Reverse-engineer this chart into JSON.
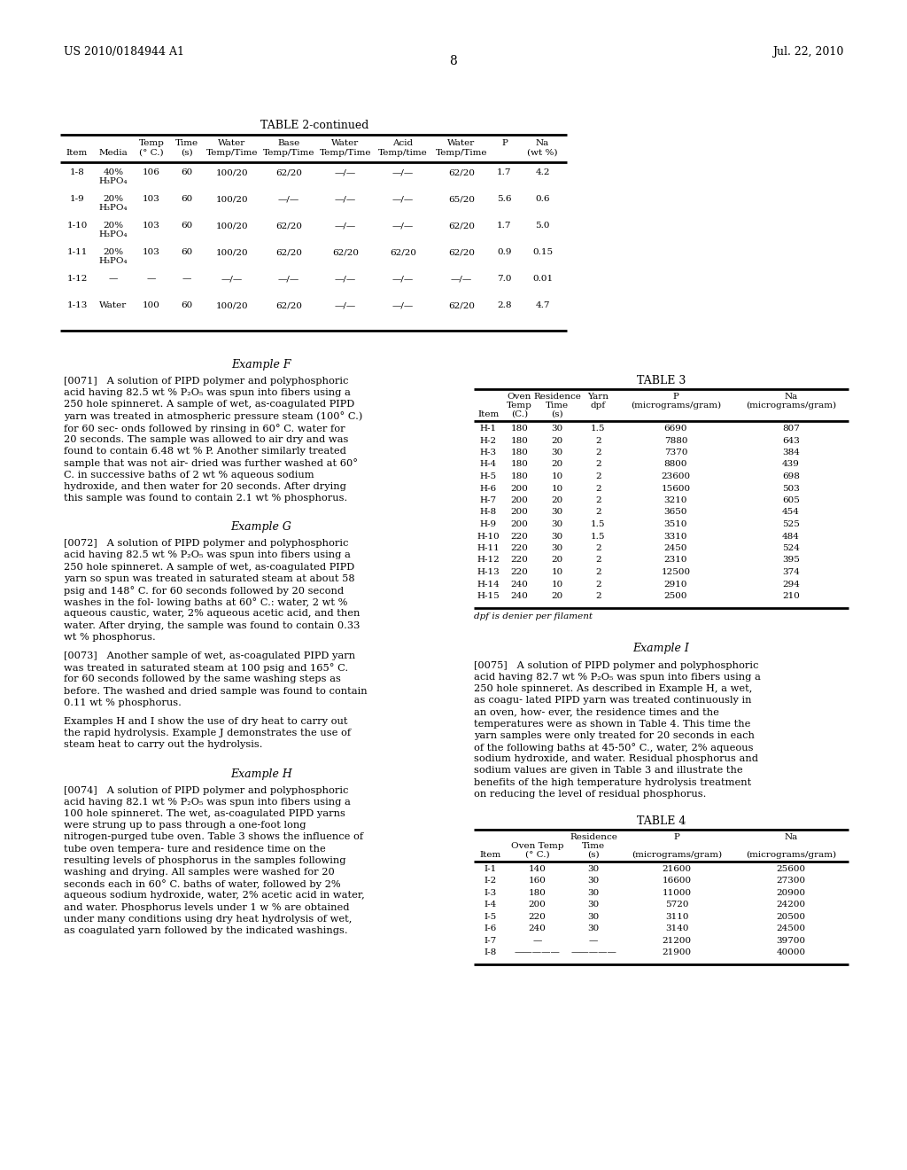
{
  "background_color": "#ffffff",
  "page_number": "8",
  "patent_left": "US 2010/0184944 A1",
  "patent_right": "Jul. 22, 2010",
  "table2_title": "TABLE 2-continued",
  "table2_rows": [
    [
      "1-8",
      "40%\nH₃PO₄",
      "106",
      "60",
      "100/20",
      "62/20",
      "—/—",
      "—/—",
      "62/20",
      "1.7",
      "4.2"
    ],
    [
      "1-9",
      "20%\nH₃PO₄",
      "103",
      "60",
      "100/20",
      "—/—",
      "—/—",
      "—/—",
      "65/20",
      "5.6",
      "0.6"
    ],
    [
      "1-10",
      "20%\nH₃PO₄",
      "103",
      "60",
      "100/20",
      "62/20",
      "—/—",
      "—/—",
      "62/20",
      "1.7",
      "5.0"
    ],
    [
      "1-11",
      "20%\nH₃PO₄",
      "103",
      "60",
      "100/20",
      "62/20",
      "62/20",
      "62/20",
      "62/20",
      "0.9",
      "0.15"
    ],
    [
      "1-12",
      "—",
      "—",
      "—",
      "—/—",
      "—/—",
      "—/—",
      "—/—",
      "—/—",
      "7.0",
      "0.01"
    ],
    [
      "1-13",
      "Water",
      "100",
      "60",
      "100/20",
      "62/20",
      "—/—",
      "—/—",
      "62/20",
      "2.8",
      "4.7"
    ]
  ],
  "example_f_title": "Example F",
  "example_f_para": "[0071]   A solution of PIPD polymer and polyphosphoric acid having 82.5 wt % P₂O₅ was spun into fibers using a 250 hole spinneret. A sample of wet, as-coagulated PIPD yarn was treated in atmospheric pressure steam (100° C.) for 60 sec- onds followed by rinsing in 60° C. water for 20 seconds. The sample was allowed to air dry and was found to contain 6.48 wt % P. Another similarly treated sample that was not air- dried was further washed at 60° C. in successive baths of 2 wt % aqueous sodium hydroxide, and then water for 20 seconds. After drying this sample was found to contain 2.1 wt % phosphorus.",
  "example_g_title": "Example G",
  "example_g_para1": "[0072]   A solution of PIPD polymer and polyphosphoric acid having 82.5 wt % P₂O₅ was spun into fibers using a 250 hole spinneret. A sample of wet, as-coagulated PIPD yarn so spun was treated in saturated steam at about 58 psig and 148° C. for 60 seconds followed by 20 second washes in the fol- lowing baths at 60° C.: water, 2 wt % aqueous caustic, water, 2% aqueous acetic acid, and then water. After drying, the sample was found to contain 0.33 wt % phosphorus.",
  "example_g_para2": "[0073]   Another sample of wet, as-coagulated PIPD yarn was treated in saturated steam at 100 psig and 165° C. for 60 seconds followed by the same washing steps as before. The washed and dried sample was found to contain 0.11 wt % phosphorus.",
  "example_g_para3": "Examples H and I show the use of dry heat to carry out the rapid hydrolysis. Example J demonstrates the use of steam heat to carry out the hydrolysis.",
  "example_h_title": "Example H",
  "example_h_para": "[0074]   A solution of PIPD polymer and polyphosphoric acid having 82.1 wt % P₂O₅ was spun into fibers using a 100 hole spinneret. The wet, as-coagulated PIPD yarns were strung up to pass through a one-foot long nitrogen-purged tube oven. Table 3 shows the influence of tube oven tempera- ture and residence time on the resulting levels of phosphorus in the samples following washing and drying. All samples were washed for 20 seconds each in 60° C. baths of water, followed by 2% aqueous sodium hydroxide, water, 2% acetic acid in water, and water. Phosphorus levels under 1 w % are obtained under many conditions using dry heat hydrolysis of wet, as coagulated yarn followed by the indicated washings.",
  "table3_title": "TABLE 3",
  "table3_rows": [
    [
      "H-1",
      "180",
      "30",
      "1.5",
      "6690",
      "807"
    ],
    [
      "H-2",
      "180",
      "20",
      "2",
      "7880",
      "643"
    ],
    [
      "H-3",
      "180",
      "30",
      "2",
      "7370",
      "384"
    ],
    [
      "H-4",
      "180",
      "20",
      "2",
      "8800",
      "439"
    ],
    [
      "H-5",
      "180",
      "10",
      "2",
      "23600",
      "698"
    ],
    [
      "H-6",
      "200",
      "10",
      "2",
      "15600",
      "503"
    ],
    [
      "H-7",
      "200",
      "20",
      "2",
      "3210",
      "605"
    ],
    [
      "H-8",
      "200",
      "30",
      "2",
      "3650",
      "454"
    ],
    [
      "H-9",
      "200",
      "30",
      "1.5",
      "3510",
      "525"
    ],
    [
      "H-10",
      "220",
      "30",
      "1.5",
      "3310",
      "484"
    ],
    [
      "H-11",
      "220",
      "30",
      "2",
      "2450",
      "524"
    ],
    [
      "H-12",
      "220",
      "20",
      "2",
      "2310",
      "395"
    ],
    [
      "H-13",
      "220",
      "10",
      "2",
      "12500",
      "374"
    ],
    [
      "H-14",
      "240",
      "10",
      "2",
      "2910",
      "294"
    ],
    [
      "H-15",
      "240",
      "20",
      "2",
      "2500",
      "210"
    ]
  ],
  "table3_footnote": "dpf is denier per filament",
  "example_i_title": "Example I",
  "example_i_para": "[0075]   A solution of PIPD polymer and polyphosphoric acid having 82.7 wt % P₂O₅ was spun into fibers using a 250 hole spinneret. As described in Example H, a wet, as coagu- lated PIPD yarn was treated continuously in an oven, how- ever, the residence times and the temperatures were as shown in Table 4. This time the yarn samples were only treated for 20 seconds in each of the following baths at 45-50° C., water, 2% aqueous sodium hydroxide, and water. Residual phosphorus and sodium values are given in Table 3 and illustrate the benefits of the high temperature hydrolysis treatment on reducing the level of residual phosphorus.",
  "table4_title": "TABLE 4",
  "table4_rows": [
    [
      "I-1",
      "140",
      "30",
      "21600",
      "25600"
    ],
    [
      "I-2",
      "160",
      "30",
      "16600",
      "27300"
    ],
    [
      "I-3",
      "180",
      "30",
      "11000",
      "20900"
    ],
    [
      "I-4",
      "200",
      "30",
      "5720",
      "24200"
    ],
    [
      "I-5",
      "220",
      "30",
      "3110",
      "20500"
    ],
    [
      "I-6",
      "240",
      "30",
      "3140",
      "24500"
    ],
    [
      "I-7",
      "—",
      "—",
      "21200",
      "39700"
    ],
    [
      "I-8",
      "—————",
      "—————",
      "21900",
      "40000"
    ]
  ]
}
